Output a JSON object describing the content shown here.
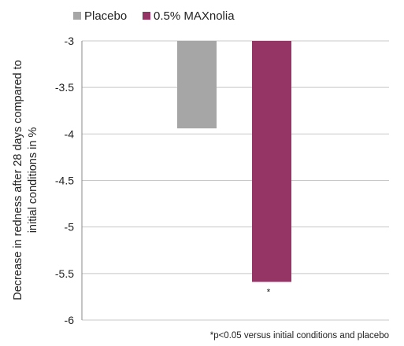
{
  "chart_data": {
    "type": "bar",
    "title": "",
    "ylabel_lines": [
      "Decrease in redness after 28 days compared to",
      "initial conditions in %"
    ],
    "xlabel": "",
    "ylim": [
      -6,
      -3
    ],
    "yticks": [
      -3,
      -3.5,
      -4,
      -4.5,
      -5,
      -5.5,
      -6
    ],
    "ytick_labels": [
      "-3",
      "-3.5",
      "-4",
      "-4.5",
      "-5",
      "-5.5",
      "-6"
    ],
    "grid": true,
    "legend_position": "top",
    "series": [
      {
        "name": "Placebo",
        "value": -3.94,
        "color": "#a6a6a6",
        "annotation": ""
      },
      {
        "name": "0.5% MAXnolia",
        "value": -5.59,
        "color": "#943566",
        "annotation": "*"
      }
    ],
    "footnote": "*p<0.05 versus initial conditions and placebo"
  }
}
